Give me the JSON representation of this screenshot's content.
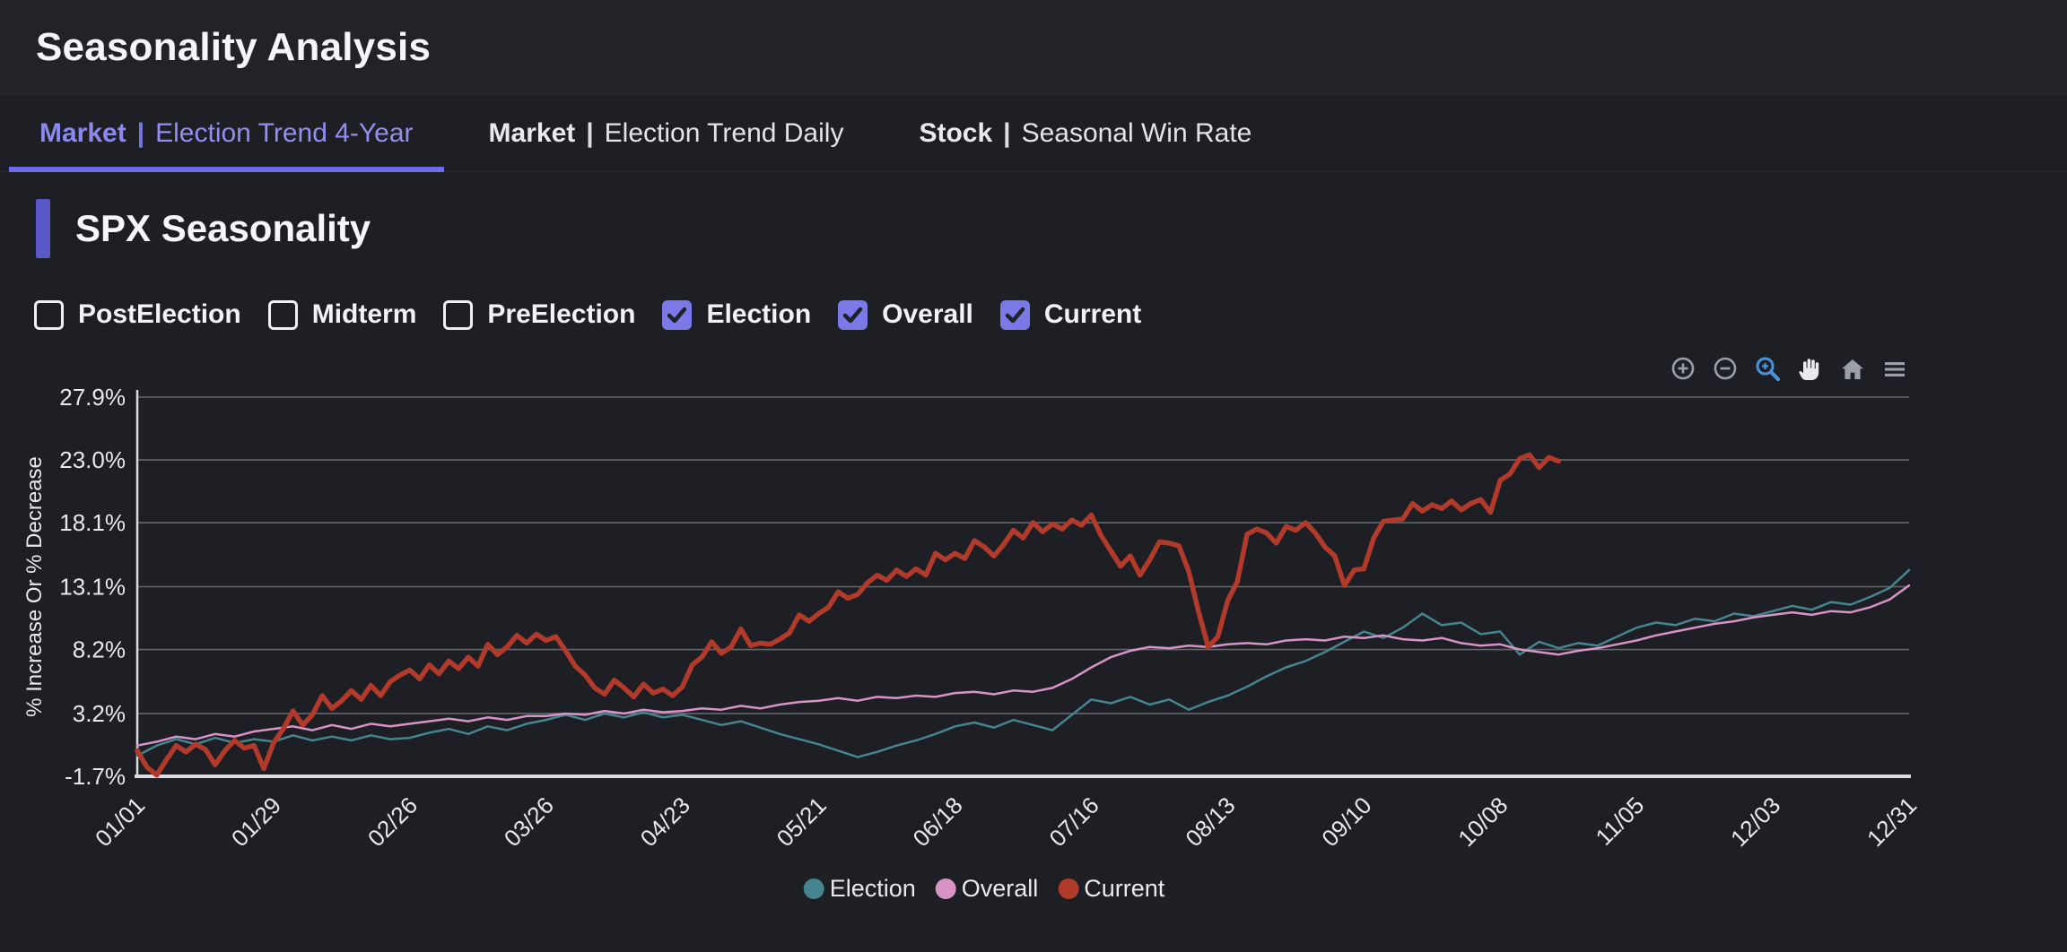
{
  "header": {
    "title": "Seasonality Analysis"
  },
  "tabs": [
    {
      "prefix": "Market",
      "divider": "|",
      "label": "Election Trend 4-Year",
      "active": true
    },
    {
      "prefix": "Market",
      "divider": "|",
      "label": "Election Trend Daily",
      "active": false
    },
    {
      "prefix": "Stock",
      "divider": "|",
      "label": "Seasonal Win Rate",
      "active": false
    }
  ],
  "section": {
    "title": "SPX Seasonality"
  },
  "filters": [
    {
      "label": "PostElection",
      "checked": false
    },
    {
      "label": "Midterm",
      "checked": false
    },
    {
      "label": "PreElection",
      "checked": false
    },
    {
      "label": "Election",
      "checked": true
    },
    {
      "label": "Overall",
      "checked": true
    },
    {
      "label": "Current",
      "checked": true
    }
  ],
  "toolbar": {
    "icons": [
      "zoom-in",
      "zoom-out",
      "zoom-select",
      "pan",
      "home",
      "menu"
    ],
    "active_icon": "zoom-select",
    "icon_color": "#9aa0a6",
    "active_color": "#4b93d9",
    "pan_color": "#e9ebee"
  },
  "colors": {
    "background": "#1d1f24",
    "header_background": "#212329",
    "accent_purple": "#6d6af0",
    "checkbox_purple": "#7b79e8",
    "section_bar_purple": "#5a58c8",
    "gridline": "#64686c",
    "axis_line": "#d9dcdf"
  },
  "chart_data": {
    "type": "line",
    "title": "",
    "xlabel": "",
    "ylabel": "% Increase Or % Decrease",
    "grid": true,
    "legend_position": "bottom-center",
    "x_tick_labels": [
      "01/01",
      "01/29",
      "02/26",
      "03/26",
      "04/23",
      "05/21",
      "06/18",
      "07/16",
      "08/13",
      "09/10",
      "10/08",
      "11/05",
      "12/03",
      "12/31"
    ],
    "x_tick_days": [
      0,
      28,
      56,
      84,
      112,
      140,
      168,
      196,
      224,
      252,
      280,
      308,
      336,
      364
    ],
    "xlim_days": [
      0,
      364
    ],
    "y_tick_labels": [
      "-1.7%",
      "3.2%",
      "8.2%",
      "13.1%",
      "18.1%",
      "23.0%",
      "27.9%"
    ],
    "y_ticks": [
      -1.7,
      3.2,
      8.2,
      13.1,
      18.1,
      23.0,
      27.9
    ],
    "ylim": [
      -1.7,
      27.9
    ],
    "legend": [
      {
        "label": "Election",
        "color": "#46858f"
      },
      {
        "label": "Overall",
        "color": "#d793c6"
      },
      {
        "label": "Current",
        "color": "#b23a2b"
      }
    ],
    "series": [
      {
        "name": "Election",
        "color": "#46858f",
        "width": 2.5,
        "start_day": 0,
        "day_step": 4,
        "values": [
          -0.1,
          0.7,
          1.2,
          0.8,
          1.3,
          0.9,
          1.2,
          1.0,
          1.5,
          1.1,
          1.4,
          1.1,
          1.5,
          1.2,
          1.3,
          1.7,
          2.0,
          1.6,
          2.2,
          1.9,
          2.4,
          2.7,
          3.1,
          2.7,
          3.2,
          2.9,
          3.3,
          2.9,
          3.1,
          2.7,
          2.3,
          2.6,
          2.1,
          1.6,
          1.2,
          0.8,
          0.3,
          -0.2,
          0.2,
          0.7,
          1.1,
          1.6,
          2.2,
          2.5,
          2.1,
          2.7,
          2.3,
          1.9,
          3.1,
          4.3,
          4.0,
          4.5,
          3.9,
          4.3,
          3.5,
          4.1,
          4.6,
          5.3,
          6.1,
          6.8,
          7.3,
          8.0,
          8.8,
          9.6,
          9.1,
          9.9,
          11.0,
          10.1,
          10.3,
          9.4,
          9.6,
          7.8,
          8.8,
          8.3,
          8.7,
          8.5,
          9.2,
          9.9,
          10.3,
          10.1,
          10.6,
          10.4,
          11.0,
          10.8,
          11.2,
          11.6,
          11.3,
          11.9,
          11.7,
          12.3,
          13.0,
          14.4
        ]
      },
      {
        "name": "Overall",
        "color": "#d793c6",
        "width": 2.5,
        "start_day": 0,
        "day_step": 4,
        "values": [
          0.7,
          1.0,
          1.4,
          1.2,
          1.6,
          1.4,
          1.8,
          2.0,
          2.2,
          1.9,
          2.3,
          2.0,
          2.4,
          2.2,
          2.4,
          2.6,
          2.8,
          2.6,
          2.9,
          2.7,
          3.0,
          3.0,
          3.2,
          3.1,
          3.4,
          3.2,
          3.5,
          3.3,
          3.4,
          3.6,
          3.5,
          3.8,
          3.6,
          3.9,
          4.1,
          4.2,
          4.4,
          4.2,
          4.5,
          4.4,
          4.6,
          4.5,
          4.8,
          4.9,
          4.7,
          5.0,
          4.9,
          5.2,
          5.9,
          6.8,
          7.6,
          8.1,
          8.4,
          8.3,
          8.5,
          8.4,
          8.6,
          8.7,
          8.6,
          8.9,
          9.0,
          8.9,
          9.2,
          9.1,
          9.3,
          9.0,
          8.9,
          9.1,
          8.7,
          8.5,
          8.6,
          8.2,
          8.0,
          7.8,
          8.1,
          8.3,
          8.6,
          8.9,
          9.3,
          9.6,
          9.9,
          10.2,
          10.4,
          10.7,
          10.9,
          11.1,
          10.9,
          11.2,
          11.1,
          11.5,
          12.1,
          13.2
        ]
      },
      {
        "name": "Current",
        "color": "#b23a2b",
        "width": 5.5,
        "start_day": 0,
        "day_step": 2,
        "values": [
          0.3,
          -1.0,
          -1.6,
          -0.4,
          0.7,
          0.2,
          0.8,
          0.4,
          -0.8,
          0.3,
          1.1,
          0.5,
          0.7,
          -1.1,
          0.9,
          2.0,
          3.4,
          2.3,
          3.1,
          4.6,
          3.6,
          4.2,
          5.0,
          4.3,
          5.4,
          4.6,
          5.7,
          6.2,
          6.6,
          5.9,
          7.0,
          6.3,
          7.3,
          6.7,
          7.6,
          6.9,
          8.6,
          7.8,
          8.4,
          9.3,
          8.7,
          9.4,
          8.9,
          9.2,
          8.1,
          6.9,
          6.2,
          5.2,
          4.7,
          5.8,
          5.2,
          4.5,
          5.5,
          4.8,
          5.1,
          4.6,
          5.3,
          7.0,
          7.6,
          8.8,
          7.9,
          8.4,
          9.8,
          8.5,
          8.7,
          8.6,
          9.0,
          9.5,
          10.9,
          10.4,
          11.0,
          11.5,
          12.7,
          12.2,
          12.5,
          13.4,
          14.0,
          13.6,
          14.4,
          13.9,
          14.5,
          14.0,
          15.7,
          15.2,
          15.7,
          15.3,
          16.7,
          16.2,
          15.5,
          16.4,
          17.5,
          16.9,
          18.1,
          17.4,
          18.0,
          17.6,
          18.3,
          17.9,
          18.7,
          17.1,
          15.9,
          14.7,
          15.5,
          14.0,
          15.2,
          16.6,
          16.5,
          16.3,
          14.3,
          11.2,
          8.4,
          9.2,
          12.0,
          13.5,
          17.2,
          17.6,
          17.3,
          16.5,
          17.8,
          17.5,
          18.1,
          17.3,
          16.2,
          15.5,
          13.2,
          14.4,
          14.5,
          16.9,
          18.2,
          18.3,
          18.4,
          19.6,
          19.0,
          19.5,
          19.2,
          19.8,
          19.1,
          19.6,
          19.9,
          18.9,
          21.4,
          21.9,
          23.1,
          23.4,
          22.4,
          23.2,
          22.9
        ]
      }
    ]
  }
}
